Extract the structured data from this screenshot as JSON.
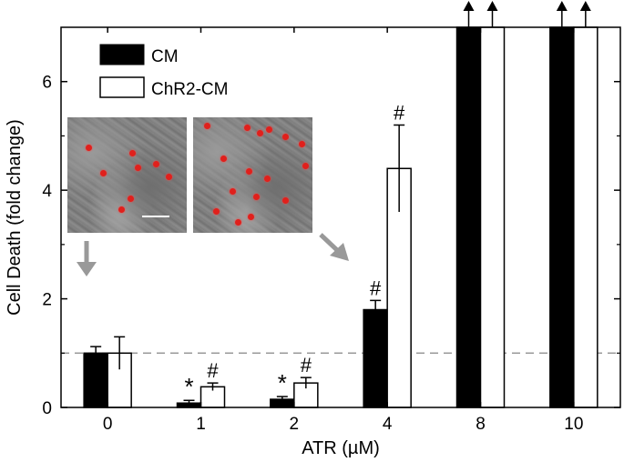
{
  "chart_data": {
    "type": "bar",
    "xlabel": "ATR (µM)",
    "ylabel": "Cell Death (fold change)",
    "ylim": [
      0,
      7
    ],
    "yticks": [
      0,
      2,
      4,
      6
    ],
    "categories": [
      "0",
      "1",
      "2",
      "4",
      "8",
      "10"
    ],
    "series": [
      {
        "name": "CM",
        "color": "#000000",
        "values": [
          1.0,
          0.08,
          0.15,
          1.8,
          7,
          7
        ],
        "errors": [
          0.12,
          0.05,
          0.05,
          0.17,
          null,
          null
        ],
        "annotations": [
          "",
          "*",
          "*",
          "#",
          "",
          ""
        ],
        "off_scale": [
          false,
          false,
          false,
          false,
          true,
          true
        ]
      },
      {
        "name": "ChR2-CM",
        "color": "#ffffff",
        "values": [
          1.0,
          0.38,
          0.45,
          4.4,
          7,
          7
        ],
        "errors": [
          0.3,
          0.07,
          0.1,
          0.8,
          null,
          null
        ],
        "annotations": [
          "",
          "#",
          "#",
          "#",
          "",
          ""
        ],
        "off_scale": [
          false,
          false,
          false,
          false,
          true,
          true
        ]
      }
    ],
    "reference_line": 1.0,
    "legend_position": "top-left",
    "insets": [
      {
        "description_icon": "microscopy-image-control",
        "points_to": "0"
      },
      {
        "description_icon": "microscopy-image-treated",
        "points_to": "4"
      }
    ],
    "grid": false
  }
}
